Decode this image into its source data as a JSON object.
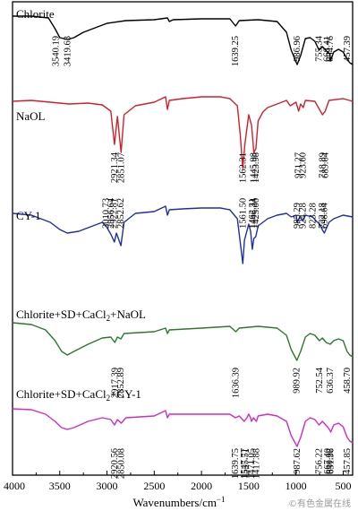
{
  "watermark": "©有色金属在线",
  "chart_data": {
    "type": "line",
    "title": "",
    "xlabel": "Wavenumbers/cm",
    "xlabel_superscript": "−1",
    "ylabel": "",
    "xlim": [
      4000,
      400
    ],
    "x_reversed": true,
    "x_ticks": [
      4000,
      3500,
      3000,
      2500,
      2000,
      1500,
      1000,
      500
    ],
    "grid": false,
    "legend": "none (labels placed above each trace)",
    "series": [
      {
        "name": "Chlorite",
        "name_parts": [
          [
            "Chlorite",
            ""
          ]
        ],
        "color": "#000000",
        "curve": [
          [
            4000,
            18
          ],
          [
            3800,
            18
          ],
          [
            3620,
            20
          ],
          [
            3550,
            32
          ],
          [
            3500,
            42
          ],
          [
            3419,
            44
          ],
          [
            3350,
            42
          ],
          [
            3250,
            36
          ],
          [
            3100,
            30
          ],
          [
            3000,
            26
          ],
          [
            2800,
            23
          ],
          [
            2500,
            22
          ],
          [
            2360,
            20
          ],
          [
            2340,
            24
          ],
          [
            2300,
            22
          ],
          [
            2000,
            21
          ],
          [
            1700,
            21
          ],
          [
            1639,
            29
          ],
          [
            1600,
            23
          ],
          [
            1400,
            22
          ],
          [
            1200,
            24
          ],
          [
            1100,
            36
          ],
          [
            1050,
            56
          ],
          [
            987,
            72
          ],
          [
            950,
            62
          ],
          [
            900,
            43
          ],
          [
            850,
            42
          ],
          [
            800,
            46
          ],
          [
            755,
            56
          ],
          [
            720,
            52
          ],
          [
            668,
            58
          ],
          [
            640,
            60
          ],
          [
            635,
            68
          ],
          [
            600,
            58
          ],
          [
            550,
            55
          ],
          [
            500,
            58
          ],
          [
            457,
            66
          ],
          [
            430,
            70
          ],
          [
            400,
            72
          ]
        ],
        "peaks": [
          {
            "wn": 3540.19,
            "label": "3540.19"
          },
          {
            "wn": 3419.63,
            "label": "3419.63"
          },
          {
            "wn": 1639.25,
            "label": "1639.25"
          },
          {
            "wn": 986.96,
            "label": "986.96"
          },
          {
            "wn": 755.34,
            "label": "755.34"
          },
          {
            "wn": 668.41,
            "label": "668.41"
          },
          {
            "wn": 634.76,
            "label": "634.76"
          },
          {
            "wn": 457.39,
            "label": "457.39"
          }
        ]
      },
      {
        "name": "NaOL",
        "name_parts": [
          [
            "NaOL",
            ""
          ]
        ],
        "color": "#d0202a",
        "curve": [
          [
            4000,
            113
          ],
          [
            3800,
            112
          ],
          [
            3600,
            114
          ],
          [
            3400,
            116
          ],
          [
            3200,
            115
          ],
          [
            3050,
            117
          ],
          [
            2960,
            124
          ],
          [
            2921,
            161
          ],
          [
            2890,
            130
          ],
          [
            2851,
            170
          ],
          [
            2820,
            128
          ],
          [
            2700,
            118
          ],
          [
            2500,
            114
          ],
          [
            2380,
            108
          ],
          [
            2360,
            122
          ],
          [
            2340,
            112
          ],
          [
            2200,
            110
          ],
          [
            2000,
            108
          ],
          [
            1800,
            108
          ],
          [
            1700,
            110
          ],
          [
            1620,
            118
          ],
          [
            1590,
            150
          ],
          [
            1562,
            188
          ],
          [
            1540,
            160
          ],
          [
            1500,
            128
          ],
          [
            1470,
            140
          ],
          [
            1446,
            170
          ],
          [
            1424,
            166
          ],
          [
            1400,
            135
          ],
          [
            1350,
            125
          ],
          [
            1300,
            120
          ],
          [
            1250,
            118
          ],
          [
            1200,
            116
          ],
          [
            1100,
            112
          ],
          [
            1060,
            118
          ],
          [
            1000,
            114
          ],
          [
            971,
            124
          ],
          [
            950,
            116
          ],
          [
            923,
            120
          ],
          [
            900,
            112
          ],
          [
            800,
            113
          ],
          [
            719,
            128
          ],
          [
            690,
            124
          ],
          [
            650,
            112
          ],
          [
            500,
            110
          ],
          [
            400,
            113
          ]
        ],
        "peaks": [
          {
            "wn": 2921.34,
            "label": "2921.34"
          },
          {
            "wn": 2851.07,
            "label": "2851.07"
          },
          {
            "wn": 1562.31,
            "label": "1562.31"
          },
          {
            "wn": 1445.98,
            "label": "1445.98"
          },
          {
            "wn": 1423.98,
            "label": "1423.98"
          },
          {
            "wn": 971.27,
            "label": "971.27"
          },
          {
            "wn": 923.6,
            "label": "923.60"
          },
          {
            "wn": 718.89,
            "label": "718.89"
          },
          {
            "wn": 689.64,
            "label": "689.64"
          }
        ]
      },
      {
        "name": "CY-1",
        "name_parts": [
          [
            "CY-1",
            ""
          ]
        ],
        "color": "#1f2fa8",
        "curve": [
          [
            4000,
            238
          ],
          [
            3800,
            240
          ],
          [
            3600,
            248
          ],
          [
            3500,
            256
          ],
          [
            3420,
            260
          ],
          [
            3300,
            258
          ],
          [
            3150,
            252
          ],
          [
            3050,
            248
          ],
          [
            3010,
            252
          ],
          [
            2956,
            262
          ],
          [
            2922,
            270
          ],
          [
            2900,
            260
          ],
          [
            2853,
            274
          ],
          [
            2820,
            248
          ],
          [
            2700,
            238
          ],
          [
            2500,
            236
          ],
          [
            2380,
            230
          ],
          [
            2360,
            240
          ],
          [
            2340,
            234
          ],
          [
            2200,
            233
          ],
          [
            2000,
            232
          ],
          [
            1800,
            232
          ],
          [
            1700,
            234
          ],
          [
            1620,
            244
          ],
          [
            1590,
            270
          ],
          [
            1562,
            294
          ],
          [
            1545,
            268
          ],
          [
            1500,
            250
          ],
          [
            1480,
            258
          ],
          [
            1462,
            278
          ],
          [
            1446,
            266
          ],
          [
            1425,
            264
          ],
          [
            1400,
            252
          ],
          [
            1300,
            244
          ],
          [
            1200,
            240
          ],
          [
            1100,
            238
          ],
          [
            1050,
            242
          ],
          [
            1000,
            240
          ],
          [
            985,
            248
          ],
          [
            960,
            242
          ],
          [
            924,
            246
          ],
          [
            900,
            240
          ],
          [
            823,
            242
          ],
          [
            790,
            246
          ],
          [
            750,
            250
          ],
          [
            722,
            256
          ],
          [
            699,
            260
          ],
          [
            650,
            248
          ],
          [
            600,
            244
          ],
          [
            500,
            240
          ],
          [
            400,
            242
          ]
        ],
        "peaks": [
          {
            "wn": 3010.73,
            "label": "3010.73"
          },
          {
            "wn": 2956.64,
            "label": "2956.64"
          },
          {
            "wn": 2922.81,
            "label": "2922.81"
          },
          {
            "wn": 2852.62,
            "label": "2852.62"
          },
          {
            "wn": 1561.5,
            "label": "1561.50"
          },
          {
            "wn": 1462.31,
            "label": "1462.31"
          },
          {
            "wn": 1446.24,
            "label": "1446.24"
          },
          {
            "wn": 1425.0,
            "label": "1425.00"
          },
          {
            "wn": 985.29,
            "label": "985.29"
          },
          {
            "wn": 924.28,
            "label": "924.28"
          },
          {
            "wn": 823.28,
            "label": "823.28"
          },
          {
            "wn": 722.18,
            "label": "722.18"
          },
          {
            "wn": 698.64,
            "label": "698.64"
          }
        ]
      },
      {
        "name": "Chlorite+SD+CaCl2+NaOL",
        "name_parts": [
          [
            "Chlorite+SD+CaCl",
            ""
          ],
          [
            "2",
            "sub"
          ],
          [
            "+NaOL",
            ""
          ]
        ],
        "color": "#2a7a2a",
        "curve": [
          [
            4000,
            360
          ],
          [
            3800,
            362
          ],
          [
            3650,
            368
          ],
          [
            3550,
            380
          ],
          [
            3480,
            392
          ],
          [
            3420,
            396
          ],
          [
            3350,
            392
          ],
          [
            3200,
            384
          ],
          [
            3050,
            377
          ],
          [
            2960,
            376
          ],
          [
            2917,
            382
          ],
          [
            2890,
            376
          ],
          [
            2853,
            378
          ],
          [
            2820,
            372
          ],
          [
            2500,
            370
          ],
          [
            2380,
            366
          ],
          [
            2360,
            372
          ],
          [
            2340,
            368
          ],
          [
            2000,
            366
          ],
          [
            1700,
            364
          ],
          [
            1636,
            370
          ],
          [
            1600,
            366
          ],
          [
            1400,
            364
          ],
          [
            1200,
            366
          ],
          [
            1100,
            374
          ],
          [
            1050,
            390
          ],
          [
            990,
            402
          ],
          [
            950,
            392
          ],
          [
            900,
            376
          ],
          [
            850,
            372
          ],
          [
            800,
            374
          ],
          [
            752,
            380
          ],
          [
            720,
            377
          ],
          [
            680,
            382
          ],
          [
            636,
            384
          ],
          [
            600,
            380
          ],
          [
            550,
            378
          ],
          [
            500,
            380
          ],
          [
            459,
            392
          ],
          [
            430,
            396
          ],
          [
            400,
            398
          ]
        ],
        "peaks": [
          {
            "wn": 2917.39,
            "label": "2917.39"
          },
          {
            "wn": 2852.89,
            "label": "2852.89"
          },
          {
            "wn": 1636.39,
            "label": "1636.39"
          },
          {
            "wn": 989.92,
            "label": "989.92"
          },
          {
            "wn": 752.54,
            "label": "752.54"
          },
          {
            "wn": 636.37,
            "label": "636.37"
          },
          {
            "wn": 458.7,
            "label": "458.70"
          }
        ]
      },
      {
        "name": "Chlorite+SD+CaCl2+CY-1",
        "name_parts": [
          [
            "Chlorite+SD+CaCl",
            ""
          ],
          [
            "2",
            "sub"
          ],
          [
            "+CY-1",
            ""
          ]
        ],
        "color": "#d02ac8",
        "curve": [
          [
            4000,
            456
          ],
          [
            3800,
            457
          ],
          [
            3650,
            462
          ],
          [
            3550,
            470
          ],
          [
            3480,
            477
          ],
          [
            3420,
            479
          ],
          [
            3350,
            477
          ],
          [
            3200,
            470
          ],
          [
            3050,
            466
          ],
          [
            2960,
            468
          ],
          [
            2921,
            474
          ],
          [
            2890,
            468
          ],
          [
            2850,
            472
          ],
          [
            2800,
            466
          ],
          [
            2500,
            464
          ],
          [
            2380,
            458
          ],
          [
            2360,
            466
          ],
          [
            2340,
            462
          ],
          [
            2000,
            462
          ],
          [
            1700,
            462
          ],
          [
            1640,
            466
          ],
          [
            1600,
            464
          ],
          [
            1548,
            470
          ],
          [
            1520,
            466
          ],
          [
            1500,
            462
          ],
          [
            1480,
            466
          ],
          [
            1471,
            470
          ],
          [
            1450,
            466
          ],
          [
            1418,
            470
          ],
          [
            1400,
            464
          ],
          [
            1300,
            462
          ],
          [
            1200,
            464
          ],
          [
            1100,
            470
          ],
          [
            1050,
            486
          ],
          [
            988,
            498
          ],
          [
            950,
            488
          ],
          [
            900,
            470
          ],
          [
            850,
            466
          ],
          [
            800,
            468
          ],
          [
            756,
            474
          ],
          [
            720,
            470
          ],
          [
            667,
            476
          ],
          [
            641,
            480
          ],
          [
            632,
            482
          ],
          [
            600,
            474
          ],
          [
            550,
            472
          ],
          [
            500,
            476
          ],
          [
            458,
            488
          ],
          [
            430,
            492
          ],
          [
            400,
            494
          ]
        ],
        "peaks": [
          {
            "wn": 2920.56,
            "label": "2920.56"
          },
          {
            "wn": 2850.08,
            "label": "2850.08"
          },
          {
            "wn": 1639.75,
            "label": "1639.75"
          },
          {
            "wn": 1547.77,
            "label": "1547.77"
          },
          {
            "wn": 1535.51,
            "label": "1535.51"
          },
          {
            "wn": 1471.05,
            "label": "1471.05"
          },
          {
            "wn": 1417.88,
            "label": "1417.88"
          },
          {
            "wn": 987.62,
            "label": "987.62"
          },
          {
            "wn": 756.22,
            "label": "756.22"
          },
          {
            "wn": 667.4,
            "label": "667.40"
          },
          {
            "wn": 640.22,
            "label": "640.22"
          },
          {
            "wn": 631.96,
            "label": "631.96"
          },
          {
            "wn": 457.85,
            "label": "457.85"
          }
        ]
      }
    ]
  }
}
